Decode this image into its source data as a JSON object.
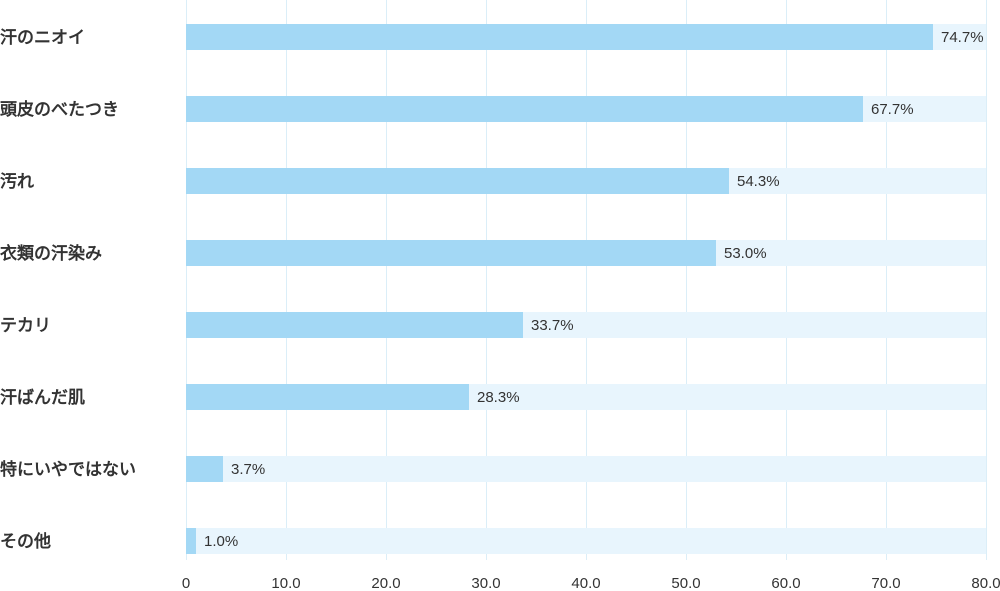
{
  "chart_data": {
    "type": "bar",
    "orientation": "horizontal",
    "categories": [
      "汗のニオイ",
      "頭皮のべたつき",
      "汚れ",
      "衣類の汗染み",
      "テカリ",
      "汗ばんだ肌",
      "特にいやではない",
      "その他"
    ],
    "values": [
      74.7,
      67.7,
      54.3,
      53.0,
      33.7,
      28.3,
      3.7,
      1.0
    ],
    "value_labels": [
      "74.7%",
      "67.7%",
      "54.3%",
      "53.0%",
      "33.7%",
      "28.3%",
      "3.7%",
      "1.0%"
    ],
    "xlim": [
      0,
      80
    ],
    "x_ticks": [
      0,
      10,
      20,
      30,
      40,
      50,
      60,
      70,
      80
    ],
    "x_tick_labels": [
      "0",
      "10.0",
      "20.0",
      "30.0",
      "40.0",
      "50.0",
      "60.0",
      "70.0",
      "80.0"
    ],
    "grid": true,
    "colors": {
      "bar": "#a3d8f5",
      "bar_background": "#e8f5fd",
      "grid": "#dbeef8",
      "text": "#333333"
    }
  }
}
